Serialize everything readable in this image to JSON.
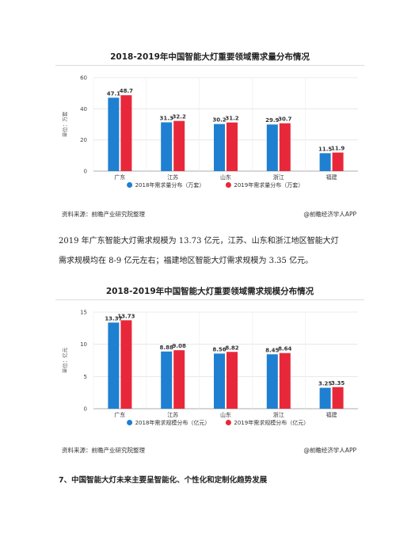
{
  "paragraph": {
    "line1": "2019 年广东智能大灯需求规模为 13.73 亿元，江苏、山东和浙江地区智能大灯",
    "line2": "需求规模均在 8-9 亿元左右；福建地区智能大灯需求规模为 3.35 亿元。"
  },
  "section_heading": "7、中国智能大灯未来主要呈智能化、个性化和定制化趋势发展",
  "chart_data": [
    {
      "type": "bar",
      "title": "2018-2019年中国智能大灯重要领域需求量分布情况",
      "ylabel": "单位：万套",
      "xlabel": "",
      "categories": [
        "广东",
        "江苏",
        "山东",
        "浙江",
        "福建"
      ],
      "series": [
        {
          "name": "2018年需求量分布（万套）",
          "values": [
            47.1,
            31.3,
            30.2,
            29.9,
            11.5
          ],
          "labels": [
            "47.1",
            "31.3",
            "30.2",
            "29.9",
            "11.5"
          ],
          "color": "#1f7fd1"
        },
        {
          "name": "2019年需求量分布（万套）",
          "values": [
            48.7,
            32.2,
            31.2,
            30.7,
            11.9
          ],
          "labels": [
            "48.7",
            "32.2",
            "31.2",
            "30.7",
            "11.9"
          ],
          "color": "#e8283a"
        }
      ],
      "ylim": [
        0,
        60
      ],
      "yticks": [
        0,
        20,
        40,
        60
      ],
      "grid": true,
      "legend": "bottom",
      "source": "资料来源：前瞻产业研究院整理",
      "brand": "@前瞻经济学人APP"
    },
    {
      "type": "bar",
      "title": "2018-2019年中国智能大灯重要领域需求规模分布情况",
      "ylabel": "单位：亿元",
      "xlabel": "",
      "categories": [
        "广东",
        "江苏",
        "山东",
        "浙江",
        "福建"
      ],
      "series": [
        {
          "name": "2018年需求规模分布（亿元）",
          "values": [
            13.37,
            8.88,
            8.56,
            8.45,
            3.25
          ],
          "labels": [
            "13.37",
            "8.88",
            "8.56",
            "8.45",
            "3.25"
          ],
          "color": "#1f7fd1"
        },
        {
          "name": "2019年需求规模分布（亿元）",
          "values": [
            13.73,
            9.08,
            8.82,
            8.64,
            3.35
          ],
          "labels": [
            "13.73",
            "9.08",
            "8.82",
            "8.64",
            "3.35"
          ],
          "color": "#e8283a"
        }
      ],
      "ylim": [
        0,
        15
      ],
      "yticks": [
        0,
        5,
        10,
        15
      ],
      "grid": true,
      "legend": "bottom",
      "source": "资料来源：前瞻产业研究院整理",
      "brand": "@前瞻经济学人APP"
    }
  ]
}
